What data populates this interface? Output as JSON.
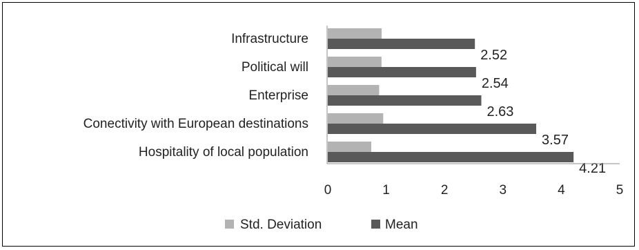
{
  "chart_data": {
    "type": "bar",
    "orientation": "horizontal",
    "categories": [
      "Infrastructure",
      "Political will",
      "Enterprise",
      "Conectivity with European destinations",
      "Hospitality of local population"
    ],
    "series": [
      {
        "name": "Std. Deviation",
        "color": "#b3b3b3",
        "values": [
          0.92257,
          0.92019,
          0.87999,
          0.94963,
          0.74444
        ]
      },
      {
        "name": "Mean",
        "color": "#595959",
        "values": [
          2.52,
          2.54,
          2.63,
          3.57,
          4.21
        ]
      }
    ],
    "data_labels": {
      "Std. Deviation": [
        "0.92257",
        "0.92019",
        "0.87999",
        "0.94963",
        "0.74444"
      ],
      "Mean": [
        "2.52",
        "2.54",
        "2.63",
        "3.57",
        "4.21"
      ]
    },
    "x_ticks": [
      "0",
      "1",
      "2",
      "3",
      "4",
      "5"
    ],
    "xlim": [
      0,
      5
    ],
    "grid": false,
    "legend_position": "bottom",
    "title": "",
    "xlabel": "",
    "ylabel": ""
  }
}
